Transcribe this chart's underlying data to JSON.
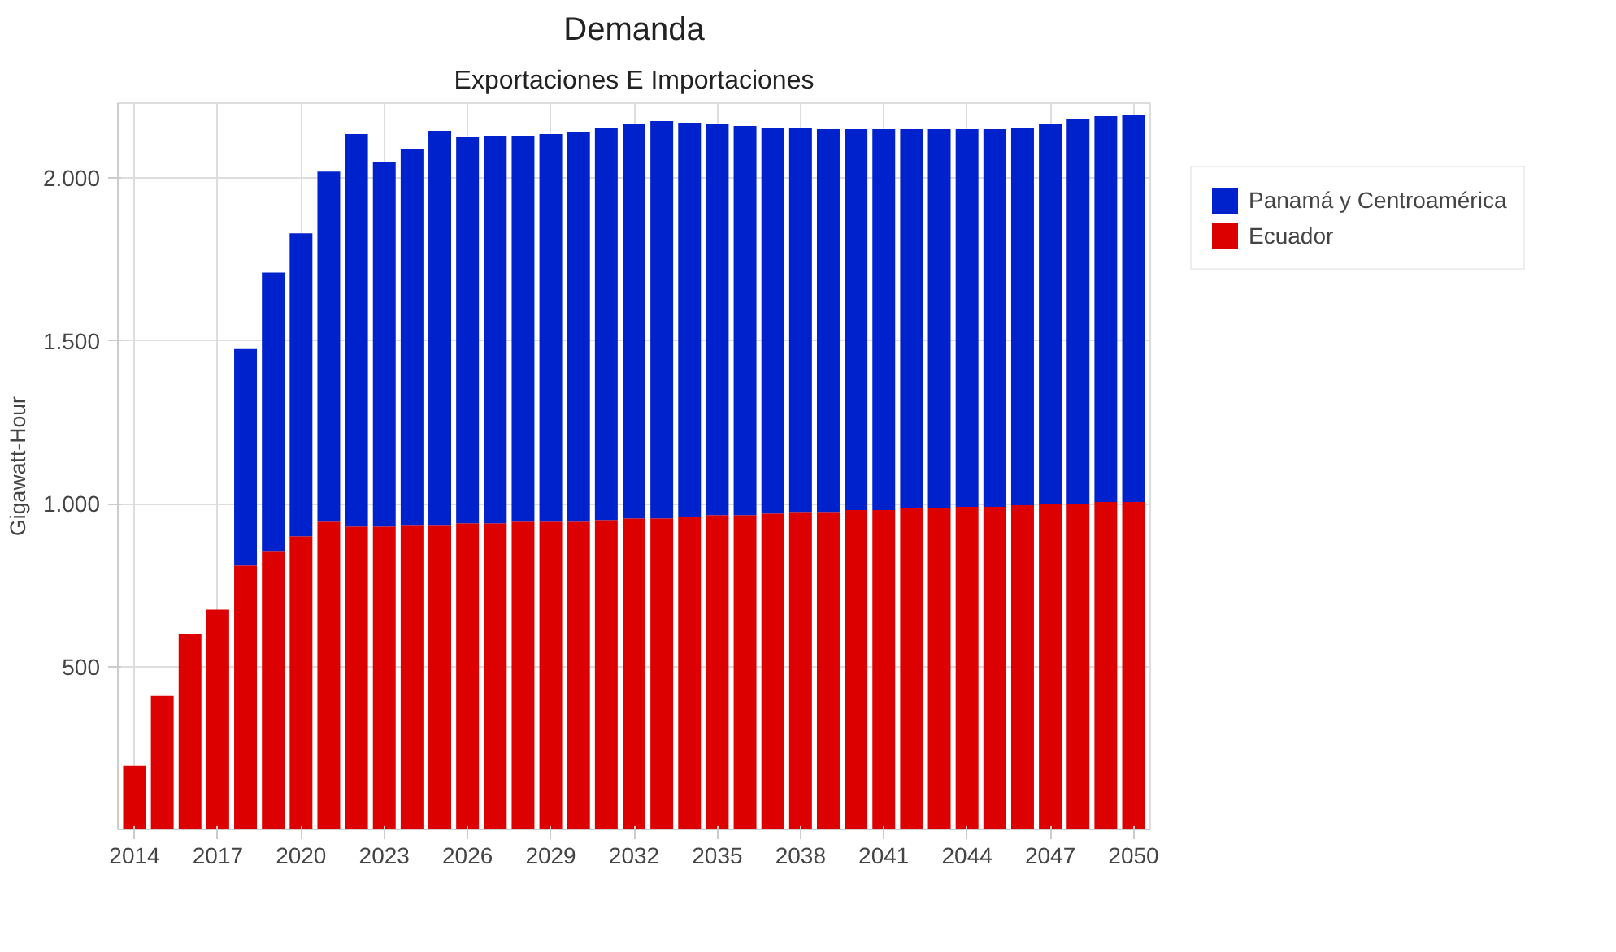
{
  "chart_data": {
    "type": "bar",
    "stacked": true,
    "title": "Demanda",
    "subtitle": "Exportaciones E Importaciones",
    "ylabel": "Gigawatt-Hour",
    "x": [
      2014,
      2015,
      2016,
      2017,
      2018,
      2019,
      2020,
      2021,
      2022,
      2023,
      2024,
      2025,
      2026,
      2027,
      2028,
      2029,
      2030,
      2031,
      2032,
      2033,
      2034,
      2035,
      2036,
      2037,
      2038,
      2039,
      2040,
      2041,
      2042,
      2043,
      2044,
      2045,
      2046,
      2047,
      2048,
      2049,
      2050
    ],
    "series": [
      {
        "name": "Ecuador",
        "color": "#dd0000",
        "values": [
          195,
          410,
          600,
          675,
          810,
          855,
          900,
          945,
          930,
          930,
          935,
          935,
          940,
          940,
          945,
          945,
          945,
          950,
          955,
          955,
          960,
          965,
          965,
          970,
          975,
          975,
          980,
          980,
          985,
          985,
          990,
          990,
          995,
          1000,
          1000,
          1005,
          1005
        ]
      },
      {
        "name": "Panamá y Centroamérica",
        "color": "#0022cc",
        "values": [
          0,
          0,
          0,
          0,
          665,
          855,
          930,
          1075,
          1205,
          1120,
          1155,
          1210,
          1185,
          1190,
          1185,
          1190,
          1195,
          1205,
          1210,
          1220,
          1210,
          1200,
          1195,
          1185,
          1180,
          1175,
          1170,
          1170,
          1165,
          1165,
          1160,
          1160,
          1160,
          1165,
          1180,
          1185,
          1190
        ]
      }
    ],
    "xlim": [
      2013.4,
      2050.6
    ],
    "xticks": [
      2014,
      2017,
      2020,
      2023,
      2026,
      2029,
      2032,
      2035,
      2038,
      2041,
      2044,
      2047,
      2050
    ],
    "ylim": [
      0,
      2230
    ],
    "yticks": [
      {
        "value": 500,
        "label": "500"
      },
      {
        "value": 1000,
        "label": "1.000"
      },
      {
        "value": 1500,
        "label": "1.500"
      },
      {
        "value": 2000,
        "label": "2.000"
      }
    ],
    "grid": true,
    "legend": "top right"
  }
}
